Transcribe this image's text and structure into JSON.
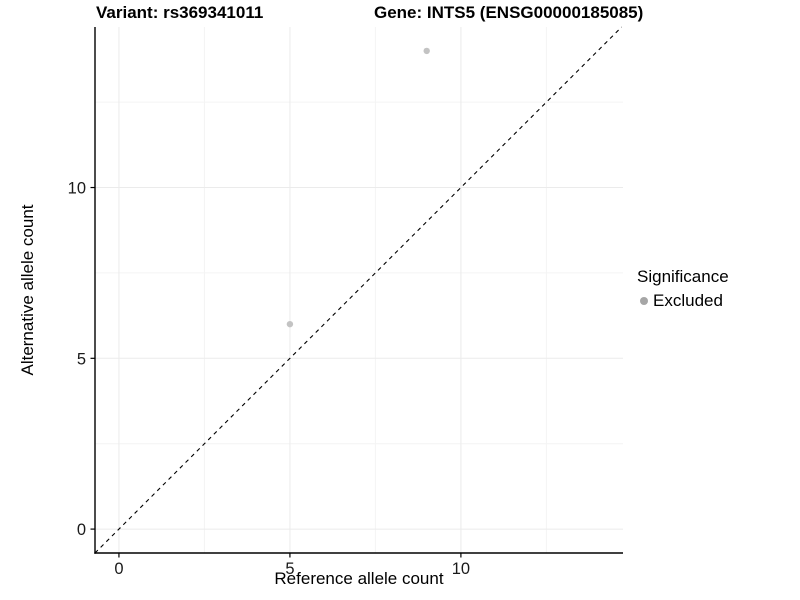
{
  "titles": {
    "variant": "Variant: rs369341011",
    "gene": "Gene: INTS5 (ENSG00000185085)"
  },
  "chart_data": {
    "type": "scatter",
    "xlabel": "Reference allele count",
    "ylabel": "Alternative allele count",
    "xlim": [
      -0.7,
      14.74
    ],
    "ylim": [
      -0.7,
      14.7
    ],
    "x_ticks": [
      0,
      5,
      10
    ],
    "y_ticks": [
      0,
      5,
      10
    ],
    "x_minor_ticks": [
      2.5,
      7.5,
      12.5
    ],
    "y_minor_ticks": [
      2.5,
      7.5,
      12.5
    ],
    "grid": true,
    "series": [
      {
        "name": "Excluded",
        "points": [
          [
            5,
            6
          ],
          [
            9,
            14
          ]
        ],
        "color": "#c3c3c3"
      }
    ],
    "reference_line": {
      "slope": 1,
      "intercept": 0,
      "style": "dashed",
      "color": "#000000"
    },
    "legend": {
      "title": "Significance",
      "position": "right",
      "entries": [
        {
          "label": "Excluded",
          "marker": "circle",
          "marker_color": "#a6a6a6"
        }
      ]
    },
    "colors": {
      "background": "#ffffff",
      "axis_line": "#000000",
      "tick_label": "#1a1a1a",
      "grid_major": "#ebebeb",
      "grid_minor": "#f4f4f4"
    }
  }
}
